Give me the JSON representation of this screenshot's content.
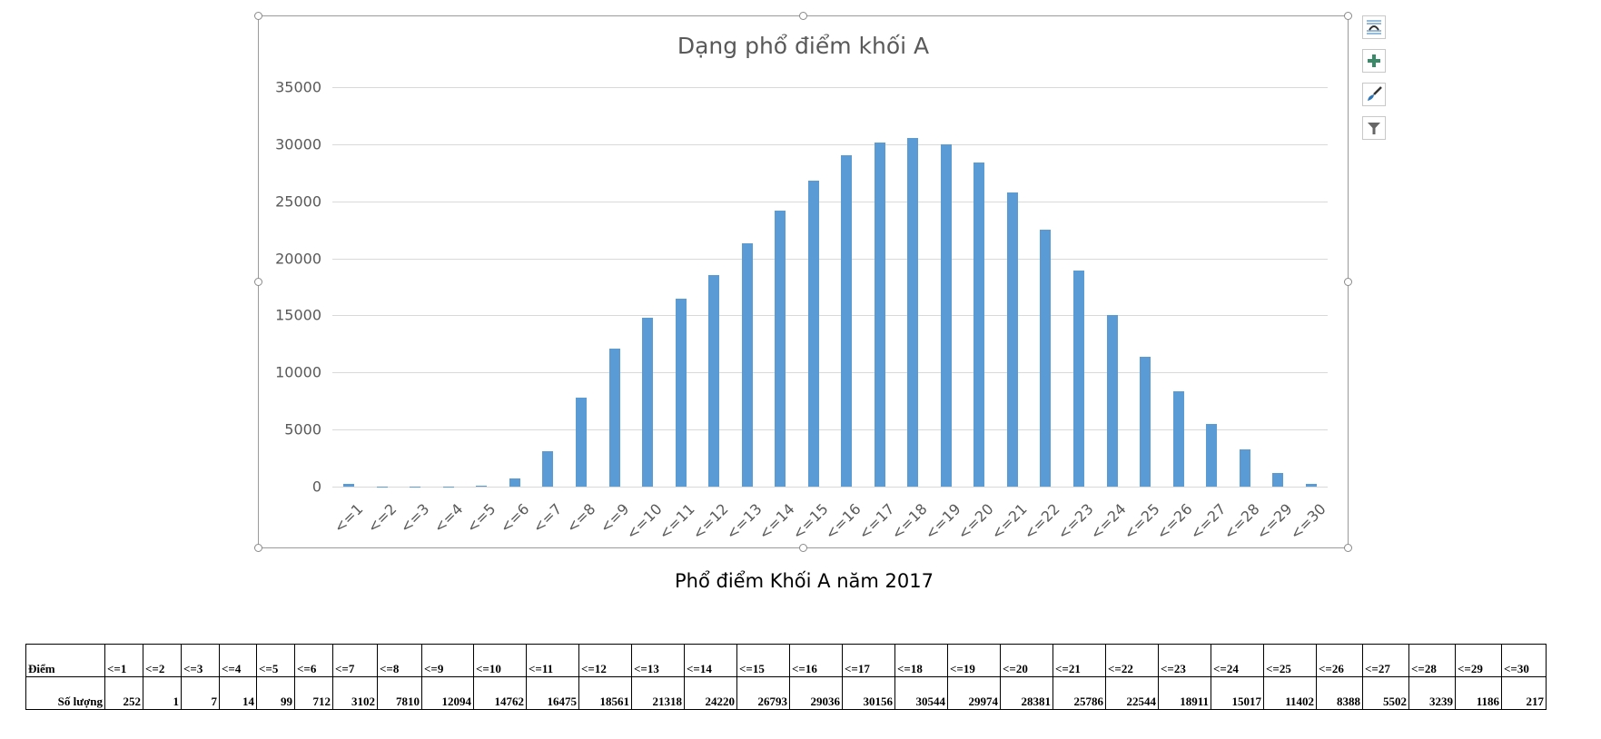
{
  "chart": {
    "title": "Dạng phổ điểm khối A",
    "caption": "Phổ điểm Khối A năm 2017",
    "bar_color": "#5b9bd5",
    "y_ticks": [
      "0",
      "5000",
      "10000",
      "15000",
      "20000",
      "25000",
      "30000",
      "35000"
    ]
  },
  "side_tools": [
    {
      "name": "layout-options-icon",
      "label": "Layout Options"
    },
    {
      "name": "chart-elements-icon",
      "label": "Chart Elements"
    },
    {
      "name": "chart-styles-icon",
      "label": "Chart Styles"
    },
    {
      "name": "chart-filters-icon",
      "label": "Chart Filters"
    }
  ],
  "table": {
    "row1_label": "Điểm",
    "row2_label": "Số lượng",
    "headers": [
      "<=1",
      "<=2",
      "<=3",
      "<=4",
      "<=5",
      "<=6",
      "<=7",
      "<=8",
      "<=9",
      "<=10",
      "<=11",
      "<=12",
      "<=13",
      "<=14",
      "<=15",
      "<=16",
      "<=17",
      "<=18",
      "<=19",
      "<=20",
      "<=21",
      "<=22",
      "<=23",
      "<=24",
      "<=25",
      "<=26",
      "<=27",
      "<=28",
      "<=29",
      "<=30"
    ],
    "values": [
      "252",
      "1",
      "7",
      "14",
      "99",
      "712",
      "3102",
      "7810",
      "12094",
      "14762",
      "16475",
      "18561",
      "21318",
      "24220",
      "26793",
      "29036",
      "30156",
      "30544",
      "29974",
      "28381",
      "25786",
      "22544",
      "18911",
      "15017",
      "11402",
      "8388",
      "5502",
      "3239",
      "1186",
      "217"
    ]
  },
  "chart_data": {
    "type": "bar",
    "title": "Dạng phổ điểm khối A",
    "subtitle": "Phổ điểm Khối A năm 2017",
    "xlabel": "",
    "ylabel": "",
    "categories": [
      "<=1",
      "<=2",
      "<=3",
      "<=4",
      "<=5",
      "<=6",
      "<=7",
      "<=8",
      "<=9",
      "<=10",
      "<=11",
      "<=12",
      "<=13",
      "<=14",
      "<=15",
      "<=16",
      "<=17",
      "<=18",
      "<=19",
      "<=20",
      "<=21",
      "<=22",
      "<=23",
      "<=24",
      "<=25",
      "<=26",
      "<=27",
      "<=28",
      "<=29",
      "<=30"
    ],
    "values": [
      252,
      1,
      7,
      14,
      99,
      712,
      3102,
      7810,
      12094,
      14762,
      16475,
      18561,
      21318,
      24220,
      26793,
      29036,
      30156,
      30544,
      29974,
      28381,
      25786,
      22544,
      18911,
      15017,
      11402,
      8388,
      5502,
      3239,
      1186,
      217
    ],
    "ylim": [
      0,
      35000
    ],
    "y_tick_step": 5000,
    "grid": true,
    "legend": "none"
  }
}
